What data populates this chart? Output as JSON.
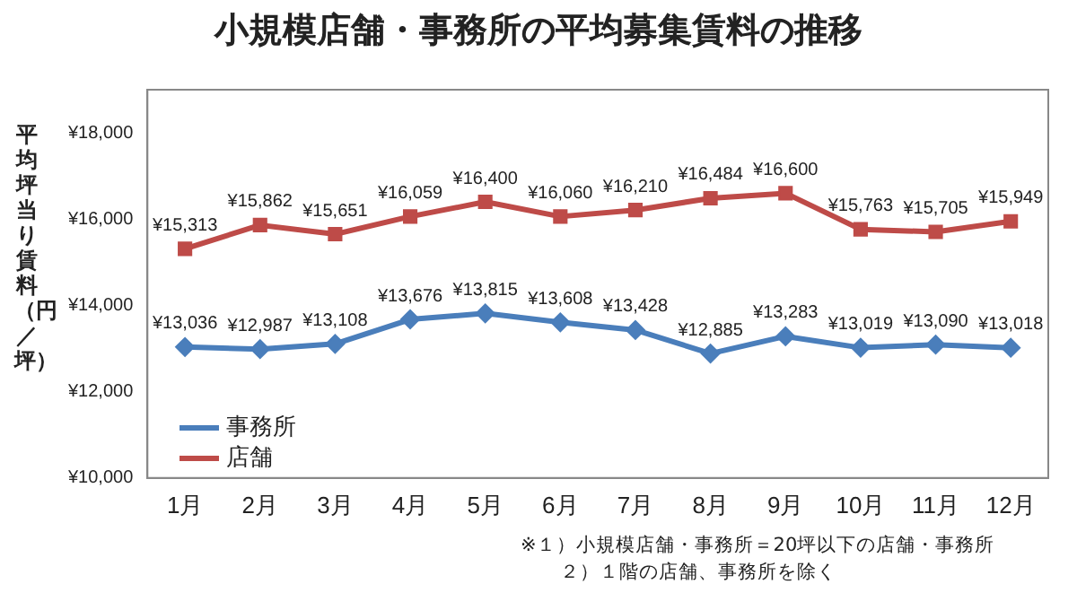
{
  "chart_data": {
    "type": "line",
    "title": "小規模店舗・事務所の平均募集賃料の推移",
    "ylabel": "平均坪当り賃料（円／坪）",
    "categories": [
      "1月",
      "2月",
      "3月",
      "4月",
      "5月",
      "6月",
      "7月",
      "8月",
      "9月",
      "10月",
      "11月",
      "12月"
    ],
    "series": [
      {
        "name": "事務所",
        "color": "#4a7ebb",
        "marker": "diamond",
        "values": [
          13036,
          12987,
          13108,
          13676,
          13815,
          13608,
          13428,
          12885,
          13283,
          13019,
          13090,
          13018
        ],
        "value_labels": [
          "¥13,036",
          "¥12,987",
          "¥13,108",
          "¥13,676",
          "¥13,815",
          "¥13,608",
          "¥13,428",
          "¥12,885",
          "¥13,283",
          "¥13,019",
          "¥13,090",
          "¥13,018"
        ]
      },
      {
        "name": "店舗",
        "color": "#be4b48",
        "marker": "square",
        "values": [
          15313,
          15862,
          15651,
          16059,
          16400,
          16060,
          16210,
          16484,
          16600,
          15763,
          15705,
          15949
        ],
        "value_labels": [
          "¥15,313",
          "¥15,862",
          "¥15,651",
          "¥16,059",
          "¥16,400",
          "¥16,060",
          "¥16,210",
          "¥16,484",
          "¥16,600",
          "¥15,763",
          "¥15,705",
          "¥15,949"
        ]
      }
    ],
    "ylim": [
      10000,
      19000
    ],
    "yticks": [
      {
        "value": 10000,
        "label": "¥10,000"
      },
      {
        "value": 12000,
        "label": "¥12,000"
      },
      {
        "value": 14000,
        "label": "¥14,000"
      },
      {
        "value": 16000,
        "label": "¥16,000"
      },
      {
        "value": 18000,
        "label": "¥18,000"
      }
    ],
    "grid": false,
    "legend": "bottom left",
    "line_style": "solid",
    "annotations": [
      "※１）小規模店舗・事務所＝20坪以下の店舗・事務所",
      "２）１階の店舗、事務所を除く"
    ]
  }
}
